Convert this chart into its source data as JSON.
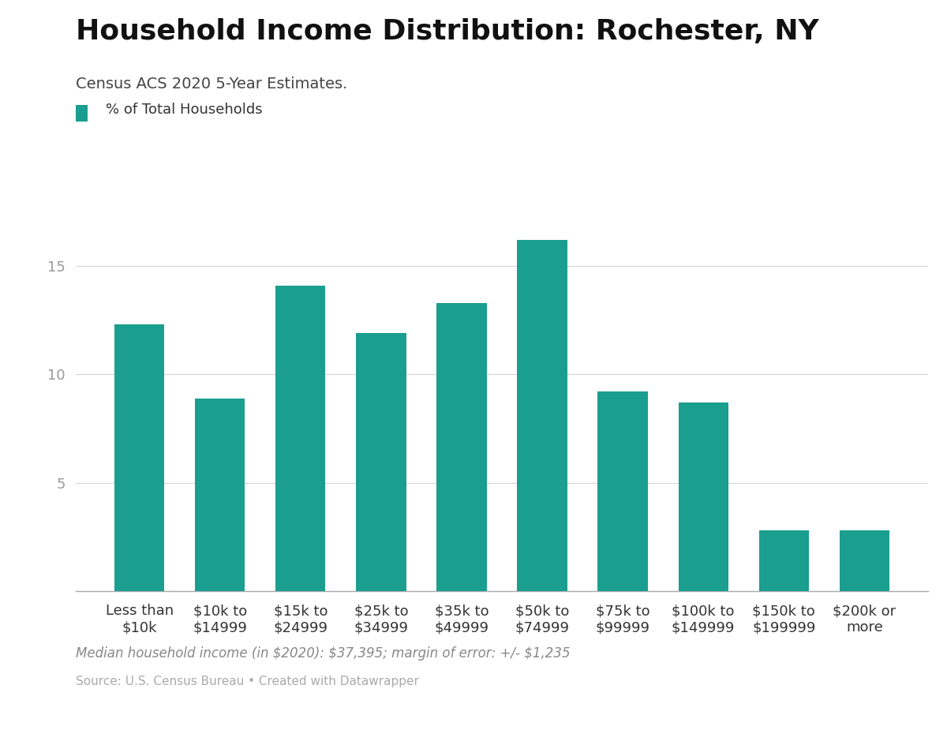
{
  "title": "Household Income Distribution: Rochester, NY",
  "subtitle": "Census ACS 2020 5-Year Estimates.",
  "legend_label": "% of Total Households",
  "categories": [
    "Less than\n$10k",
    "$10k to\n$14999",
    "$15k to\n$24999",
    "$25k to\n$34999",
    "$35k to\n$49999",
    "$50k to\n$74999",
    "$75k to\n$99999",
    "$100k to\n$149999",
    "$150k to\n$199999",
    "$200k or\nmore"
  ],
  "values": [
    12.3,
    8.9,
    14.1,
    11.9,
    13.3,
    16.2,
    9.2,
    8.7,
    2.8,
    2.8
  ],
  "bar_color": "#1a9e8f",
  "yticks": [
    0,
    5,
    10,
    15
  ],
  "ylim": [
    0,
    17.5
  ],
  "footnote_italic": "Median household income (in $2020): $37,395; margin of error: +/- $1,235",
  "footnote_source": "Source: U.S. Census Bureau • Created with Datawrapper",
  "background_color": "#ffffff",
  "grid_color": "#d5d5d5",
  "title_fontsize": 26,
  "subtitle_fontsize": 14,
  "legend_fontsize": 13,
  "tick_fontsize": 13,
  "footnote_fontsize": 12,
  "source_fontsize": 11,
  "bar_width": 0.62
}
